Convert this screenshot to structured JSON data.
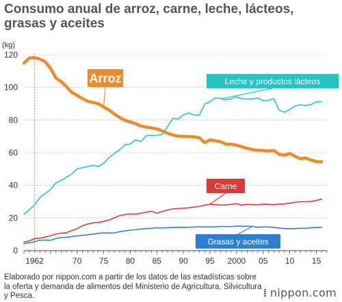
{
  "title": "Consumo anual de arroz, carne, leche, lácteos, grasas y aceites",
  "footer": {
    "note": "Elaborado por nippon.com a partir de los datos de las estadísticas sobre la oferta y demanda de alimentos del Ministerio de Agricultura, Silvicultura y Pesca.",
    "brand": "nippon.com"
  },
  "chart_data": {
    "type": "line",
    "title": "Consumo anual de arroz, carne, leche, lácteos, grasas y aceites",
    "ylabel": "(kg)",
    "xlabel": "",
    "ylim": [
      0,
      120
    ],
    "xlim": [
      1960,
      2017
    ],
    "yticks": [
      0,
      20,
      40,
      60,
      80,
      100,
      120
    ],
    "xticks": [
      {
        "year": 1962,
        "label": "1962"
      },
      {
        "year": 1970,
        "label": "70"
      },
      {
        "year": 1975,
        "label": "75"
      },
      {
        "year": 1980,
        "label": "80"
      },
      {
        "year": 1985,
        "label": "85"
      },
      {
        "year": 1990,
        "label": "90"
      },
      {
        "year": 1995,
        "label": "95"
      },
      {
        "year": 2000,
        "label": "2000"
      },
      {
        "year": 2005,
        "label": "05"
      },
      {
        "year": 2010,
        "label": "10"
      },
      {
        "year": 2015,
        "label": "15"
      }
    ],
    "grid": true,
    "legend": "inline labels",
    "x": [
      1960,
      1961,
      1962,
      1963,
      1964,
      1965,
      1966,
      1967,
      1968,
      1969,
      1970,
      1971,
      1972,
      1973,
      1974,
      1975,
      1976,
      1977,
      1978,
      1979,
      1980,
      1981,
      1982,
      1983,
      1984,
      1985,
      1986,
      1987,
      1988,
      1989,
      1990,
      1991,
      1992,
      1993,
      1994,
      1995,
      1996,
      1997,
      1998,
      1999,
      2000,
      2001,
      2002,
      2003,
      2004,
      2005,
      2006,
      2007,
      2008,
      2009,
      2010,
      2011,
      2012,
      2013,
      2014,
      2015,
      2016
    ],
    "series": [
      {
        "name": "Arroz",
        "color": "#f08a28",
        "values": [
          114.9,
          118.0,
          118.3,
          117.3,
          115.7,
          111.7,
          105.8,
          103.5,
          100.4,
          97.0,
          95.1,
          93.1,
          91.5,
          90.8,
          90.0,
          88.0,
          86.2,
          83.7,
          81.6,
          79.8,
          78.9,
          77.8,
          76.4,
          75.7,
          75.2,
          74.6,
          73.4,
          71.9,
          70.9,
          70.2,
          70.0,
          69.9,
          69.7,
          69.2,
          66.2,
          67.8,
          67.3,
          66.7,
          65.2,
          65.2,
          64.6,
          63.6,
          62.7,
          61.9,
          61.5,
          61.4,
          61.0,
          61.4,
          59.0,
          58.5,
          59.5,
          57.8,
          56.3,
          56.8,
          55.5,
          54.6,
          54.4
        ]
      },
      {
        "name": "Leche y productos lácteos",
        "color": "#27c3c3",
        "values": [
          22.2,
          25.0,
          28.0,
          32.5,
          35.0,
          37.5,
          41.5,
          43.0,
          45.0,
          47.0,
          50.1,
          50.8,
          51.5,
          52.4,
          51.5,
          53.6,
          57.0,
          59.5,
          61.8,
          64.8,
          65.3,
          67.9,
          66.8,
          70.4,
          70.6,
          70.6,
          71.2,
          75.8,
          81.1,
          80.6,
          83.2,
          84.3,
          83.1,
          83.0,
          89.8,
          91.2,
          93.6,
          93.3,
          92.4,
          93.0,
          94.2,
          93.0,
          92.9,
          93.0,
          93.5,
          91.8,
          92.1,
          93.1,
          86.0,
          84.8,
          86.4,
          88.6,
          89.4,
          88.9,
          89.5,
          91.1,
          91.3
        ]
      },
      {
        "name": "Carne",
        "color": "#d93a3a",
        "values": [
          5.2,
          6.0,
          7.3,
          7.6,
          8.3,
          9.2,
          10.1,
          10.7,
          11.0,
          12.3,
          13.4,
          15.2,
          16.3,
          17.0,
          17.3,
          17.9,
          18.8,
          20.1,
          21.4,
          22.1,
          22.5,
          22.4,
          22.9,
          23.6,
          24.1,
          22.9,
          23.9,
          24.9,
          25.6,
          25.8,
          26.0,
          26.2,
          26.7,
          27.1,
          27.8,
          28.5,
          28.2,
          27.9,
          28.0,
          28.4,
          28.8,
          27.8,
          28.4,
          28.2,
          28.1,
          28.5,
          28.4,
          28.2,
          28.5,
          28.6,
          29.1,
          29.6,
          30.0,
          30.0,
          30.1,
          30.7,
          31.6
        ]
      },
      {
        "name": "Grasas y aceites",
        "color": "#2f7fd1",
        "values": [
          4.3,
          4.8,
          5.5,
          6.3,
          6.5,
          6.3,
          7.4,
          8.0,
          8.2,
          8.7,
          9.0,
          9.4,
          9.7,
          10.1,
          10.6,
          10.9,
          10.8,
          10.9,
          11.6,
          12.1,
          12.6,
          12.8,
          13.2,
          13.5,
          13.7,
          14.0,
          13.9,
          14.1,
          14.2,
          14.3,
          14.2,
          14.3,
          14.5,
          14.6,
          14.5,
          14.6,
          14.5,
          14.9,
          14.7,
          14.7,
          15.1,
          15.0,
          15.0,
          14.9,
          14.2,
          14.6,
          14.5,
          14.3,
          13.8,
          13.5,
          13.5,
          13.5,
          13.7,
          13.6,
          14.0,
          14.2,
          14.2
        ]
      }
    ],
    "labels": [
      {
        "series": "Arroz",
        "text": "Arroz"
      },
      {
        "series": "Leche y productos lácteos",
        "text": "Leche y productos lácteos"
      },
      {
        "series": "Carne",
        "text": "Carne"
      },
      {
        "series": "Grasas y aceites",
        "text": "Grasas y aceites"
      }
    ]
  }
}
